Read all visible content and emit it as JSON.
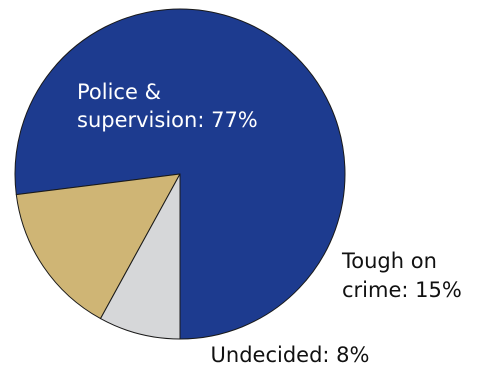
{
  "chart_data": {
    "type": "pie",
    "title": "",
    "slices": [
      {
        "label_lines": [
          "Police &",
          "supervision: 77%"
        ],
        "category": "Police & supervision",
        "value": 77,
        "color": "#1d3b8f",
        "label_color": "#ffffff"
      },
      {
        "label_lines": [
          "Tough on",
          "crime: 15%"
        ],
        "category": "Tough on crime",
        "value": 15,
        "color": "#cfb575",
        "label_color": "#111111"
      },
      {
        "label_lines": [
          "Undecided: 8%"
        ],
        "category": "Undecided",
        "value": 8,
        "color": "#d6d7d9",
        "label_color": "#111111"
      }
    ],
    "start_direction": "bottom",
    "winding": "counterclockwise",
    "legend": "none",
    "outline_color": "#1a1a1a"
  }
}
